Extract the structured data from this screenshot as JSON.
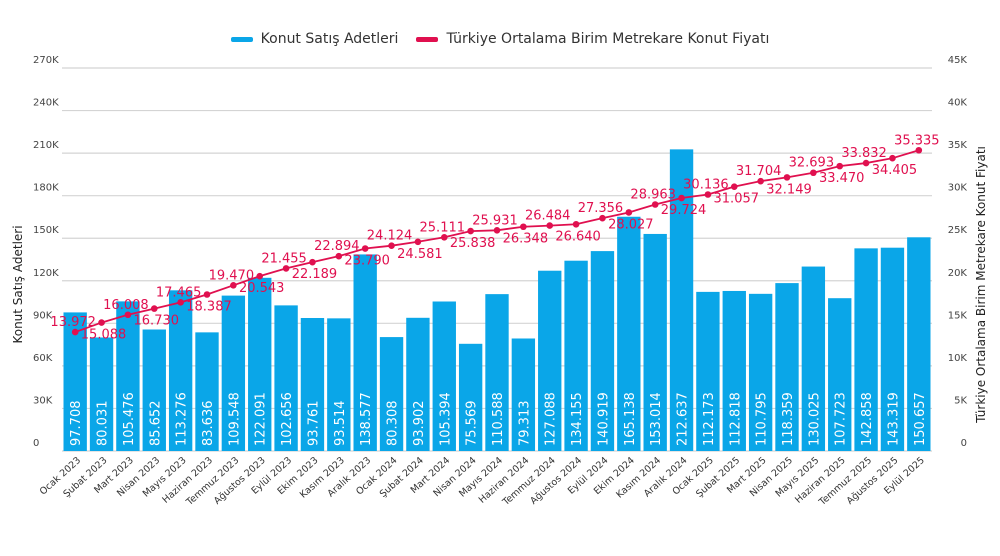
{
  "chart_data": {
    "type": "bar+line",
    "title": "",
    "legend_position": "top-center",
    "grid": true,
    "categories": [
      "Ocak 2023",
      "Şubat 2023",
      "Mart 2023",
      "Nisan 2023",
      "Mayıs 2023",
      "Haziran 2023",
      "Temmuz 2023",
      "Ağustos 2023",
      "Eylül 2023",
      "Ekim 2023",
      "Kasım 2023",
      "Aralık 2023",
      "Ocak 2024",
      "Şubat 2024",
      "Mart 2024",
      "Nisan 2024",
      "Mayıs 2024",
      "Haziran 2024",
      "Temmuz 2024",
      "Ağustos 2024",
      "Eylül 2024",
      "Ekim 2024",
      "Kasım 2024",
      "Aralık 2024",
      "Ocak 2025",
      "Şubat 2025",
      "Mart 2025",
      "Nisan 2025",
      "Mayıs 2025",
      "Haziran 2025",
      "Temmuz 2025",
      "Ağustos 2025",
      "Eylül 2025"
    ],
    "series": [
      {
        "name": "Konut Satış Adetleri",
        "type": "bar",
        "axis": "left",
        "color": "#0aa6e8",
        "values": [
          97708,
          80031,
          105476,
          85652,
          113276,
          83636,
          109548,
          122091,
          102656,
          93761,
          93514,
          138577,
          80308,
          93902,
          105394,
          75569,
          110588,
          79313,
          127088,
          134155,
          140919,
          165138,
          153014,
          212637,
          112173,
          112818,
          110795,
          118359,
          130025,
          107723,
          142858,
          143319,
          150657
        ],
        "labels": [
          "97.708",
          "80.031",
          "105.476",
          "85.652",
          "113.276",
          "83.636",
          "109.548",
          "122.091",
          "102.656",
          "93.761",
          "93.514",
          "138.577",
          "80.308",
          "93.902",
          "105.394",
          "75.569",
          "110.588",
          "79.313",
          "127.088",
          "134.155",
          "140.919",
          "165.138",
          "153.014",
          "212.637",
          "112.173",
          "112.818",
          "110.795",
          "118.359",
          "130.025",
          "107.723",
          "142.858",
          "143.319",
          "150.657"
        ]
      },
      {
        "name": "Türkiye Ortalama Birim Metrekare Konut Fiyatı",
        "type": "line",
        "axis": "right",
        "color": "#e0104f",
        "values": [
          13972,
          15088,
          16008,
          16730,
          17465,
          18387,
          19470,
          20543,
          21455,
          22189,
          22894,
          23790,
          24124,
          24581,
          25111,
          25838,
          25931,
          26348,
          26484,
          26640,
          27356,
          28027,
          28963,
          29724,
          30136,
          31057,
          31704,
          32149,
          32693,
          33470,
          33832,
          34405,
          35335
        ],
        "labels": [
          "13.972",
          "15.088",
          "16.008",
          "16.730",
          "17.465",
          "18.387",
          "19.470",
          "20.543",
          "21.455",
          "22.189",
          "22.894",
          "23.790",
          "24.124",
          "24.581",
          "25.111",
          "25.838",
          "25.931",
          "26.348",
          "26.484",
          "26.640",
          "27.356",
          "28.027",
          "28.963",
          "29.724",
          "30.136",
          "31.057",
          "31.704",
          "32.149",
          "32.693",
          "33.470",
          "33.832",
          "34.405",
          "35.335"
        ]
      }
    ],
    "y_left": {
      "label": "Konut Satış Adetleri",
      "range": [
        0,
        270000
      ],
      "ticks": [
        0,
        30000,
        60000,
        90000,
        120000,
        150000,
        180000,
        210000,
        240000,
        270000
      ],
      "tick_labels": [
        "0",
        "30K",
        "60K",
        "90K",
        "120K",
        "150K",
        "180K",
        "210K",
        "240K",
        "270K"
      ]
    },
    "y_right": {
      "label": "Türkiye Ortalama Birim Metrekare Konut Fiyatı",
      "range": [
        0,
        45000
      ],
      "ticks": [
        0,
        5000,
        10000,
        15000,
        20000,
        25000,
        30000,
        35000,
        40000,
        45000
      ],
      "tick_labels": [
        "0",
        "5K",
        "10K",
        "15K",
        "20K",
        "25K",
        "30K",
        "35K",
        "40K",
        "45K"
      ]
    }
  }
}
